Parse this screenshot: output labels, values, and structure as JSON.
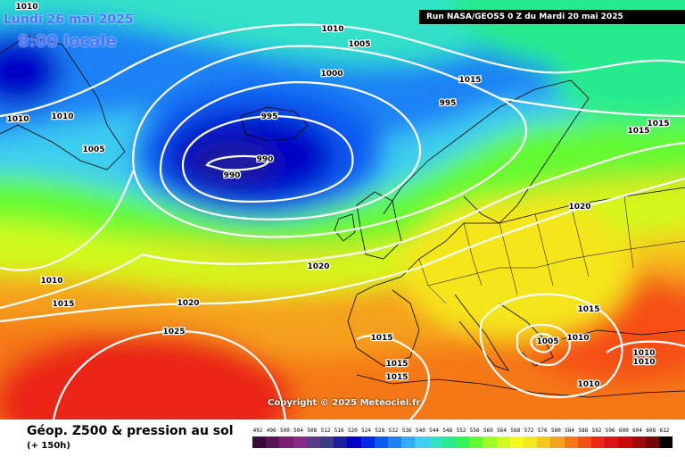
{
  "header": {
    "date": "Lundi 26 mai 2025",
    "time": "8:00 locale",
    "run": "Run NASA/GEOS5 0 Z du Mardi 20 mai 2025"
  },
  "copyright": "Copyright © 2025 Meteociel.fr",
  "legend": {
    "title": "Géop. Z500 & pression au sol",
    "subtitle": "(+ 150h)",
    "scale_values": [
      "492",
      "496",
      "500",
      "504",
      "508",
      "512",
      "516",
      "520",
      "524",
      "528",
      "532",
      "536",
      "540",
      "544",
      "548",
      "552",
      "556",
      "560",
      "564",
      "568",
      "572",
      "576",
      "580",
      "584",
      "588",
      "592",
      "596",
      "600",
      "604",
      "608",
      "612"
    ],
    "scale_colors": [
      "#3a0a3a",
      "#5a1456",
      "#7a1e72",
      "#8c2a8c",
      "#5a3a8a",
      "#3c3c82",
      "#1e1e9c",
      "#0000c8",
      "#0028e6",
      "#0a5af0",
      "#1e82f5",
      "#32aaf5",
      "#3ccdf0",
      "#32e1c8",
      "#28eb8c",
      "#32f55a",
      "#64fa32",
      "#a0fa28",
      "#d2fa1e",
      "#f5fa1e",
      "#f5e61e",
      "#f5c81e",
      "#f5a01e",
      "#f57814",
      "#f55014",
      "#eb2814",
      "#dc1414",
      "#c80a0a",
      "#a00a0a",
      "#780505",
      "#000000"
    ]
  },
  "isobars": [
    {
      "label": "1010",
      "value": 1010
    },
    {
      "label": "1005",
      "value": 1005
    },
    {
      "label": "1000",
      "value": 1000
    },
    {
      "label": "995",
      "value": 995
    },
    {
      "label": "990",
      "value": 990
    },
    {
      "label": "1015",
      "value": 1015
    },
    {
      "label": "1020",
      "value": 1020
    },
    {
      "label": "1025",
      "value": 1025
    }
  ],
  "map_labels": [
    "1010",
    "1010",
    "1010",
    "1005",
    "1000",
    "995",
    "995",
    "990",
    "990",
    "1005",
    "1010",
    "1015",
    "1015",
    "1015",
    "1020",
    "1020",
    "1025",
    "1015",
    "1015",
    "1015",
    "1015",
    "1005",
    "1010",
    "1010",
    "1010",
    "1010",
    "1020",
    "1015",
    "1010"
  ]
}
